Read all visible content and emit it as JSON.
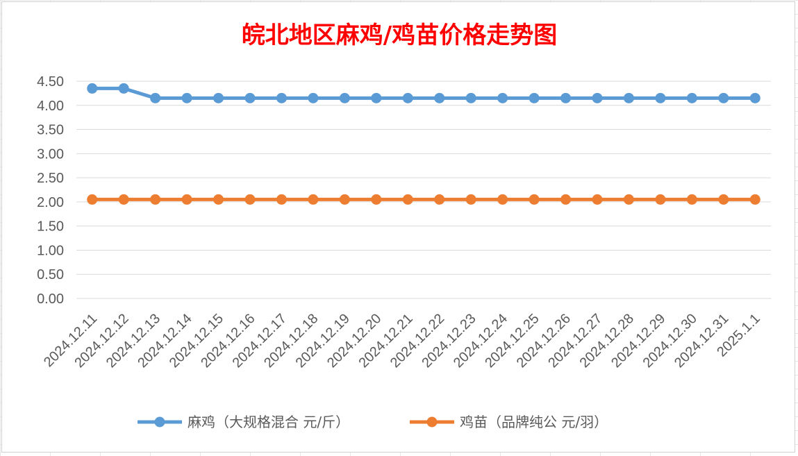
{
  "chart_data": {
    "type": "line",
    "title": "皖北地区麻鸡/鸡苗价格走势图",
    "xlabel": "",
    "ylabel": "",
    "ylim": [
      0,
      4.5
    ],
    "yticks": [
      "0.00",
      "0.50",
      "1.00",
      "1.50",
      "2.00",
      "2.50",
      "3.00",
      "3.50",
      "4.00",
      "4.50"
    ],
    "categories": [
      "2024.12.11",
      "2024.12.12",
      "2024.12.13",
      "2024.12.14",
      "2024.12.15",
      "2024.12.16",
      "2024.12.17",
      "2024.12.18",
      "2024.12.19",
      "2024.12.20",
      "2024.12.21",
      "2024.12.22",
      "2024.12.23",
      "2024.12.24",
      "2024.12.25",
      "2024.12.26",
      "2024.12.27",
      "2024.12.28",
      "2024.12.29",
      "2024.12.30",
      "2024.12.31",
      "2025.1.1"
    ],
    "series": [
      {
        "name": "麻鸡（大规格混合 元/斤）",
        "color": "#5b9bd5",
        "values": [
          4.35,
          4.35,
          4.15,
          4.15,
          4.15,
          4.15,
          4.15,
          4.15,
          4.15,
          4.15,
          4.15,
          4.15,
          4.15,
          4.15,
          4.15,
          4.15,
          4.15,
          4.15,
          4.15,
          4.15,
          4.15,
          4.15
        ]
      },
      {
        "name": "鸡苗（品牌纯公 元/羽）",
        "color": "#ed7d31",
        "values": [
          2.05,
          2.05,
          2.05,
          2.05,
          2.05,
          2.05,
          2.05,
          2.05,
          2.05,
          2.05,
          2.05,
          2.05,
          2.05,
          2.05,
          2.05,
          2.05,
          2.05,
          2.05,
          2.05,
          2.05,
          2.05,
          2.05
        ]
      }
    ],
    "grid": true,
    "legend_position": "bottom"
  }
}
